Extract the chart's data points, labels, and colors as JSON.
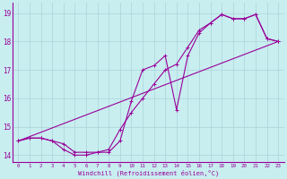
{
  "xlabel": "Windchill (Refroidissement éolien,°C)",
  "bg_color": "#c8eef0",
  "grid_color": "#b0d8dc",
  "line_color": "#990099",
  "xlim": [
    -0.5,
    23.5
  ],
  "ylim": [
    13.75,
    19.35
  ],
  "yticks": [
    14,
    15,
    16,
    17,
    18,
    19
  ],
  "xticks": [
    0,
    1,
    2,
    3,
    4,
    5,
    6,
    7,
    8,
    9,
    10,
    11,
    12,
    13,
    14,
    15,
    16,
    17,
    18,
    19,
    20,
    21,
    22,
    23
  ],
  "series1_x": [
    0,
    1,
    2,
    3,
    4,
    5,
    6,
    7,
    8,
    9,
    10,
    11,
    12,
    13,
    14,
    15,
    16,
    17,
    18,
    19,
    20,
    21,
    22,
    23
  ],
  "series1_y": [
    14.5,
    14.6,
    14.6,
    14.5,
    14.4,
    14.1,
    14.1,
    14.1,
    14.2,
    14.9,
    15.5,
    16.0,
    16.5,
    17.0,
    17.2,
    17.8,
    18.4,
    18.65,
    18.95,
    18.8,
    18.8,
    18.95,
    18.1,
    18.0
  ],
  "series2_x": [
    0,
    1,
    2,
    3,
    4,
    5,
    6,
    7,
    8,
    9,
    10,
    11,
    12,
    13,
    14,
    15,
    16,
    17,
    18,
    19,
    20,
    21,
    22,
    23
  ],
  "series2_y": [
    14.5,
    14.6,
    14.6,
    14.5,
    14.2,
    14.0,
    14.0,
    14.1,
    14.1,
    14.5,
    15.9,
    17.0,
    17.15,
    17.5,
    15.6,
    17.5,
    18.3,
    18.65,
    18.95,
    18.8,
    18.8,
    18.95,
    18.1,
    18.0
  ],
  "series3_x": [
    0,
    23
  ],
  "series3_y": [
    14.5,
    18.0
  ]
}
